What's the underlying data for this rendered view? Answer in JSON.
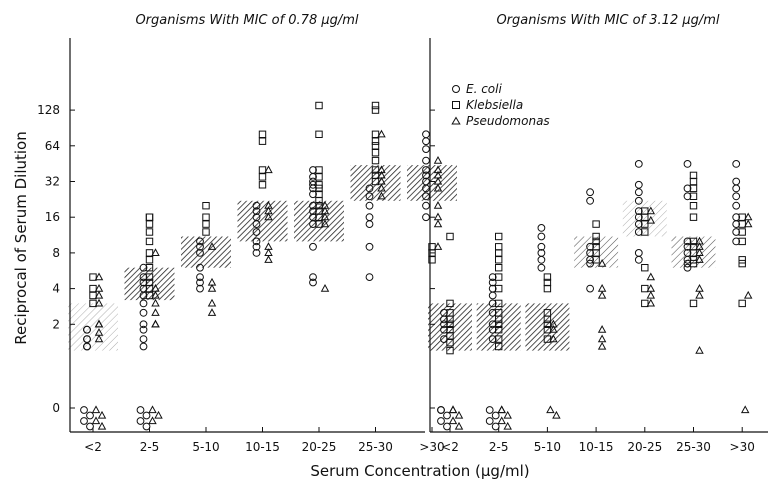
{
  "chart_data": {
    "shared": {
      "xlabel": "Serum Concentration (μg/ml)",
      "ylabel": "Reciprocal of Serum Dilution",
      "x_categories": [
        "<2",
        "2-5",
        "5-10",
        "10-15",
        "20-25",
        "25-30",
        ">30"
      ],
      "y_ticks": [
        "0",
        "2",
        "4",
        "8",
        "16",
        "32",
        "64",
        "128"
      ],
      "y_scale": "log2 (0 plotted below 1)",
      "legend": {
        "placement": "top-left of right panel",
        "entries": [
          {
            "label": "E. coli",
            "marker": "circle"
          },
          {
            "label": "Klebsiella",
            "marker": "square"
          },
          {
            "label": "Pseudomonas",
            "marker": "triangle"
          }
        ]
      }
    },
    "panels": [
      {
        "type": "scatter",
        "title": "Organisms With MIC of 0.78 μg/ml",
        "shaded_ranges": [
          {
            "category": "<2",
            "y": [
              1.2,
              3.0
            ],
            "density": "light"
          },
          {
            "category": "2-5",
            "y": [
              3.2,
              6.0
            ],
            "density": "dense"
          },
          {
            "category": "5-10",
            "y": [
              6.0,
              11.0
            ],
            "density": "dense"
          },
          {
            "category": "10-15",
            "y": [
              10.0,
              22.0
            ],
            "density": "dense"
          },
          {
            "category": "20-25",
            "y": [
              10.0,
              22.0
            ],
            "density": "dense"
          },
          {
            "category": "25-30",
            "y": [
              22.0,
              44.0
            ],
            "density": "dense"
          },
          {
            "category": ">30",
            "y": [
              22.0,
              44.0
            ],
            "density": "dense"
          }
        ],
        "points": [
          {
            "category": "<2",
            "marker": "square",
            "y": [
              5,
              4,
              3.5,
              3
            ]
          },
          {
            "category": "<2",
            "marker": "triangle",
            "y": [
              5,
              4,
              3.5,
              3,
              2,
              2,
              1.7,
              1.5
            ]
          },
          {
            "category": "<2",
            "marker": "circle",
            "y": [
              1.8,
              1.8,
              1.5,
              1.5,
              1.3,
              1.3,
              0,
              0,
              0,
              0
            ]
          },
          {
            "category": "<2",
            "marker": "triangle",
            "y": [
              0,
              0,
              0,
              0
            ]
          },
          {
            "category": "2-5",
            "marker": "square",
            "y": [
              16,
              16,
              14,
              12,
              10,
              8,
              7,
              6,
              5,
              4.5,
              4,
              3.5
            ]
          },
          {
            "category": "2-5",
            "marker": "triangle",
            "y": [
              8,
              4,
              3.5,
              3,
              2.5,
              2,
              2,
              0,
              0,
              0
            ]
          },
          {
            "category": "2-5",
            "marker": "circle",
            "y": [
              6,
              5,
              4.5,
              4,
              3.5,
              3,
              2.5,
              2,
              1.8,
              1.5,
              1.3,
              0,
              0,
              0,
              0
            ]
          },
          {
            "category": "5-10",
            "marker": "square",
            "y": [
              20,
              16,
              14,
              12
            ]
          },
          {
            "category": "5-10",
            "marker": "circle",
            "y": [
              10,
              9,
              8,
              6,
              5,
              4.5,
              4
            ]
          },
          {
            "category": "5-10",
            "marker": "triangle",
            "y": [
              9,
              4.5,
              4,
              3,
              2.5
            ]
          },
          {
            "category": "10-15",
            "marker": "square",
            "y": [
              80,
              70,
              40,
              35,
              30
            ]
          },
          {
            "category": "10-15",
            "marker": "triangle",
            "y": [
              40,
              20,
              18,
              16,
              9,
              8,
              7
            ]
          },
          {
            "category": "10-15",
            "marker": "circle",
            "y": [
              20,
              18,
              16,
              14,
              12,
              10,
              9,
              8
            ]
          },
          {
            "category": "20-25",
            "marker": "square",
            "y": [
              140,
              80,
              40,
              35,
              30,
              28,
              25,
              22,
              20,
              18,
              16,
              14
            ]
          },
          {
            "category": "20-25",
            "marker": "circle",
            "y": [
              40,
              35,
              32,
              30,
              28,
              25,
              20,
              18,
              16,
              14,
              9,
              5,
              4.5
            ]
          },
          {
            "category": "20-25",
            "marker": "triangle",
            "y": [
              20,
              18,
              16,
              14,
              4
            ]
          },
          {
            "category": "25-30",
            "marker": "square",
            "y": [
              140,
              128,
              80,
              70,
              64,
              56,
              48,
              40,
              36,
              32
            ]
          },
          {
            "category": "25-30",
            "marker": "triangle",
            "y": [
              80,
              40,
              36,
              32,
              28,
              24
            ]
          },
          {
            "category": "25-30",
            "marker": "circle",
            "y": [
              28,
              24,
              20,
              16,
              14,
              9,
              5
            ]
          },
          {
            "category": ">30",
            "marker": "circle",
            "y": [
              80,
              70,
              60,
              48,
              40,
              36,
              32,
              28,
              24,
              20,
              16
            ]
          },
          {
            "category": ">30",
            "marker": "triangle",
            "y": [
              48,
              40,
              36,
              32,
              28,
              20,
              16,
              14,
              9
            ]
          },
          {
            "category": ">30",
            "marker": "square",
            "y": [
              9,
              8,
              7
            ]
          }
        ]
      },
      {
        "type": "scatter",
        "title": "Organisms With MIC of 3.12 μg/ml",
        "shaded_ranges": [
          {
            "category": "<2",
            "y": [
              1.2,
              3.0
            ],
            "density": "dense"
          },
          {
            "category": "2-5",
            "y": [
              1.2,
              3.0
            ],
            "density": "dense"
          },
          {
            "category": "5-10",
            "y": [
              1.2,
              3.0
            ],
            "density": "dense"
          },
          {
            "category": "10-15",
            "y": [
              6.0,
              11.0
            ],
            "density": "medium"
          },
          {
            "category": "20-25",
            "y": [
              11.0,
              22.0
            ],
            "density": "light"
          },
          {
            "category": "25-30",
            "y": [
              6.0,
              11.0
            ],
            "density": "medium"
          }
        ],
        "points": [
          {
            "category": "<2",
            "marker": "square",
            "y": [
              11,
              3,
              2.5,
              2.2,
              2,
              1.8,
              1.6,
              1.4,
              1.2
            ]
          },
          {
            "category": "<2",
            "marker": "circle",
            "y": [
              2.5,
              2.2,
              2,
              1.8,
              1.5,
              0,
              0,
              0,
              0,
              0
            ]
          },
          {
            "category": "<2",
            "marker": "triangle",
            "y": [
              0,
              0,
              0,
              0,
              0
            ]
          },
          {
            "category": "2-5",
            "marker": "square",
            "y": [
              11,
              9,
              8,
              7,
              6,
              5,
              4,
              3,
              2.5,
              2.2,
              2,
              1.8,
              1.5,
              1.3
            ]
          },
          {
            "category": "2-5",
            "marker": "circle",
            "y": [
              5,
              4.5,
              4,
              3.5,
              3,
              2.5,
              2,
              1.8,
              1.5,
              0,
              0,
              0,
              0
            ]
          },
          {
            "category": "2-5",
            "marker": "triangle",
            "y": [
              0,
              0,
              0,
              0,
              0
            ]
          },
          {
            "category": "5-10",
            "marker": "circle",
            "y": [
              13,
              11,
              9,
              8,
              7,
              6
            ]
          },
          {
            "category": "5-10",
            "marker": "square",
            "y": [
              5,
              4.5,
              4,
              2.5,
              2.2,
              2,
              1.8,
              1.5
            ]
          },
          {
            "category": "5-10",
            "marker": "triangle",
            "y": [
              2,
              1.8,
              1.5,
              0,
              0
            ]
          },
          {
            "category": "10-15",
            "marker": "circle",
            "y": [
              26,
              22,
              9,
              8,
              7,
              6.5,
              4
            ]
          },
          {
            "category": "10-15",
            "marker": "square",
            "y": [
              14,
              11,
              10,
              9,
              8,
              7
            ]
          },
          {
            "category": "10-15",
            "marker": "triangle",
            "y": [
              6.5,
              4,
              3.5,
              1.8,
              1.5,
              1.3
            ]
          },
          {
            "category": "20-25",
            "marker": "circle",
            "y": [
              45,
              30,
              26,
              22,
              18,
              16,
              14,
              12,
              8,
              7
            ]
          },
          {
            "category": "20-25",
            "marker": "square",
            "y": [
              18,
              16,
              14,
              12,
              6,
              4,
              3
            ]
          },
          {
            "category": "20-25",
            "marker": "triangle",
            "y": [
              18,
              15,
              5,
              4,
              3.5,
              3
            ]
          },
          {
            "category": "25-30",
            "marker": "circle",
            "y": [
              45,
              28,
              24,
              10,
              9,
              8,
              7,
              6.5,
              6
            ]
          },
          {
            "category": "25-30",
            "marker": "square",
            "y": [
              36,
              32,
              28,
              24,
              20,
              16,
              10,
              9,
              8,
              7,
              6.5,
              3
            ]
          },
          {
            "category": "25-30",
            "marker": "triangle",
            "y": [
              10,
              9,
              8,
              7,
              4,
              3.5,
              1.2
            ]
          },
          {
            "category": ">30",
            "marker": "circle",
            "y": [
              45,
              32,
              28,
              24,
              20,
              16,
              14,
              12,
              10
            ]
          },
          {
            "category": ">30",
            "marker": "square",
            "y": [
              16,
              14,
              12,
              10,
              7,
              6.5,
              3
            ]
          },
          {
            "category": ">30",
            "marker": "triangle",
            "y": [
              16,
              14,
              3.5,
              0
            ]
          }
        ]
      }
    ]
  }
}
